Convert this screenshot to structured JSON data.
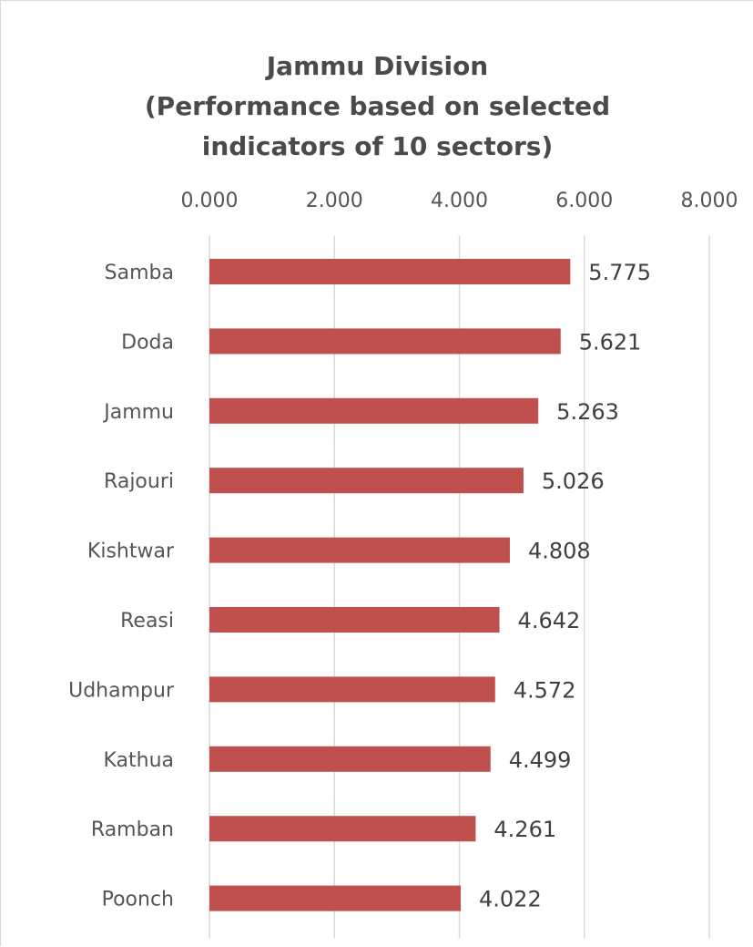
{
  "chart_data": {
    "type": "bar",
    "orientation": "horizontal",
    "title_lines": [
      "Jammu Division",
      "(Performance based on selected",
      "indicators of 10 sectors)"
    ],
    "xlabel": "",
    "ylabel": "",
    "xlim": [
      0,
      8
    ],
    "x_ticks": [
      0,
      2,
      4,
      6,
      8
    ],
    "x_tick_labels": [
      "0.000",
      "2.000",
      "4.000",
      "6.000",
      "8.000"
    ],
    "x_axis_position": "top",
    "grid": "vertical",
    "legend": "none",
    "bar_color": "#c0504d",
    "categories": [
      "Samba",
      "Doda",
      "Jammu",
      "Rajouri",
      "Kishtwar",
      "Reasi",
      "Udhampur",
      "Kathua",
      "Ramban",
      "Poonch"
    ],
    "values": [
      5.775,
      5.621,
      5.263,
      5.026,
      4.808,
      4.642,
      4.572,
      4.499,
      4.261,
      4.022
    ],
    "data_labels": [
      "5.775",
      "5.621",
      "5.263",
      "5.026",
      "4.808",
      "4.642",
      "4.572",
      "4.499",
      "4.261",
      "4.022"
    ]
  }
}
